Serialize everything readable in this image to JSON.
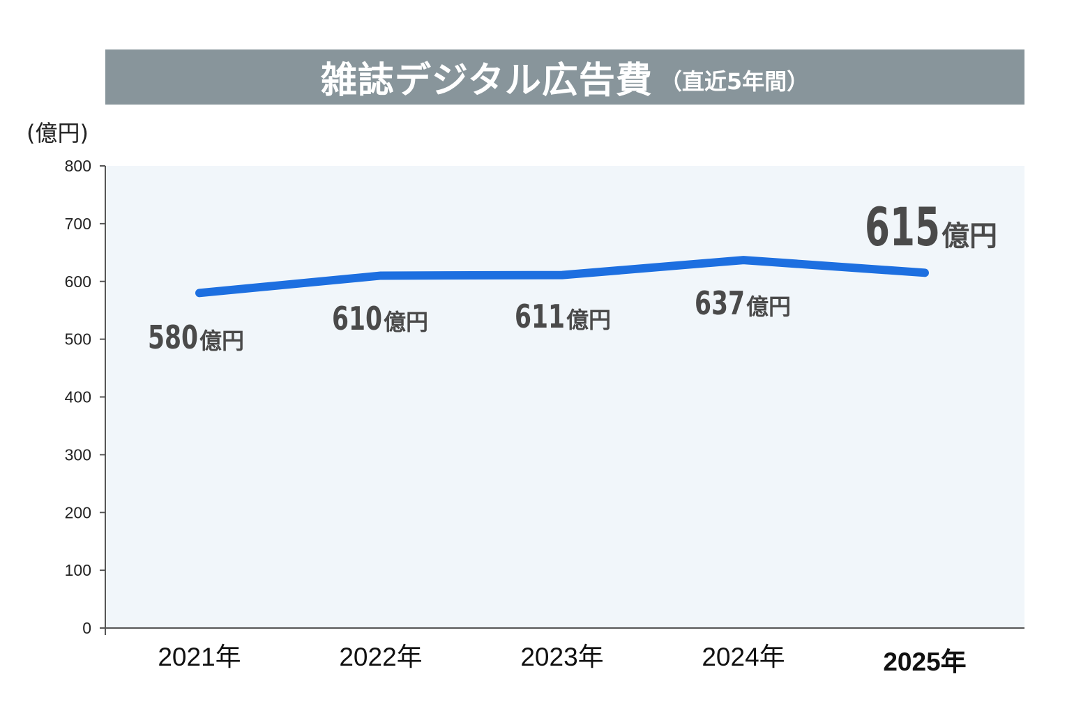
{
  "header": {
    "title": "雑誌デジタル広告費",
    "subtitle": "（直近5年間）"
  },
  "chart_data": {
    "type": "line",
    "title": "雑誌デジタル広告費（直近5年間）",
    "ylabel": "(億円)",
    "xlabel": "",
    "ylim": [
      0,
      800
    ],
    "yticks": [
      "0",
      "100",
      "200",
      "300",
      "400",
      "500",
      "600",
      "700",
      "800"
    ],
    "categories": [
      "2021年",
      "2022年",
      "2023年",
      "2024年",
      "2025年"
    ],
    "values": [
      580,
      610,
      611,
      637,
      615
    ],
    "data_labels": [
      "580",
      "610",
      "611",
      "637",
      "615"
    ],
    "data_label_unit": "億円",
    "grid": false,
    "highlight_index": 4,
    "colors": {
      "line": "#1d6fe0",
      "plot_background": "#f1f6fa",
      "axis": "#555555",
      "normal_label": "#4a4a4a",
      "highlight": "#d2163e",
      "title_bar": "#88959b"
    }
  }
}
